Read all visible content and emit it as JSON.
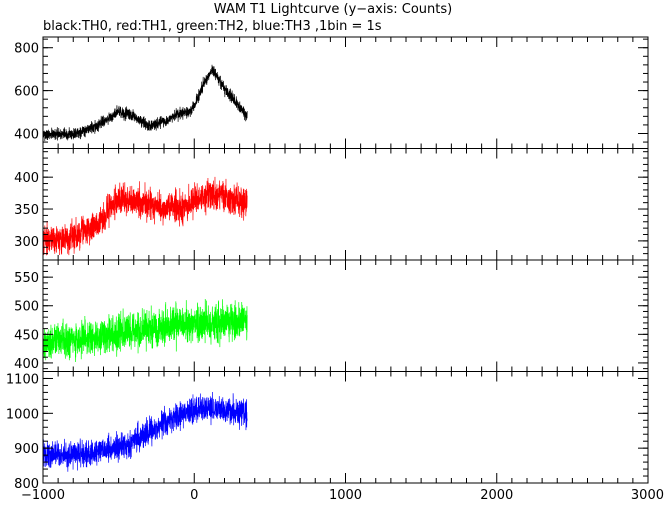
{
  "chart_data": {
    "type": "line",
    "title": "WAM T1 Lightcurve (y−axis: Counts)",
    "subtitle": "black:TH0, red:TH1, green:TH2, blue:TH3 ,1bin = 1s",
    "x_range": [
      -1000,
      3000
    ],
    "x_ticks": [
      -1000,
      0,
      1000,
      2000,
      3000
    ],
    "x_tick_labels": [
      "−1000",
      "0",
      "1000",
      "2000",
      "3000"
    ],
    "data_x_range": [
      -1000,
      350
    ],
    "grid": false,
    "panels": [
      {
        "color": "#000000",
        "ylim": [
          330,
          850
        ],
        "y_ticks": [
          400,
          600,
          800
        ],
        "y_tick_labels": [
          "400",
          "600",
          "800"
        ],
        "trend": {
          "x": [
            -1000,
            -800,
            -650,
            -500,
            -400,
            -300,
            -200,
            -100,
            -30,
            0,
            60,
            120,
            200,
            260,
            350
          ],
          "y": [
            395,
            400,
            430,
            505,
            480,
            435,
            455,
            490,
            505,
            530,
            630,
            700,
            610,
            560,
            480
          ]
        },
        "noise_amplitude": 25
      },
      {
        "color": "#ff0000",
        "ylim": [
          270,
          445
        ],
        "y_ticks": [
          300,
          350,
          400
        ],
        "y_tick_labels": [
          "300",
          "350",
          "400"
        ],
        "trend": {
          "x": [
            -1000,
            -800,
            -650,
            -500,
            -350,
            -200,
            -50,
            0,
            100,
            200,
            350
          ],
          "y": [
            300,
            305,
            325,
            365,
            360,
            350,
            355,
            365,
            372,
            368,
            360
          ]
        },
        "noise_amplitude": 22
      },
      {
        "color": "#00ff00",
        "ylim": [
          385,
          580
        ],
        "y_ticks": [
          400,
          450,
          500,
          550
        ],
        "y_tick_labels": [
          "400",
          "450",
          "500",
          "550"
        ],
        "trend": {
          "x": [
            -1000,
            -700,
            -400,
            -100,
            100,
            350
          ],
          "y": [
            435,
            445,
            455,
            468,
            472,
            470
          ]
        },
        "noise_amplitude": 30
      },
      {
        "color": "#0000ff",
        "ylim": [
          800,
          1120
        ],
        "y_ticks": [
          800,
          900,
          1000,
          1100
        ],
        "y_tick_labels": [
          "800",
          "900",
          "1000",
          "1100"
        ],
        "trend": {
          "x": [
            -1000,
            -700,
            -450,
            -250,
            -100,
            50,
            200,
            350
          ],
          "y": [
            880,
            885,
            910,
            960,
            995,
            1015,
            1010,
            1000
          ]
        },
        "noise_amplitude": 35
      }
    ]
  }
}
